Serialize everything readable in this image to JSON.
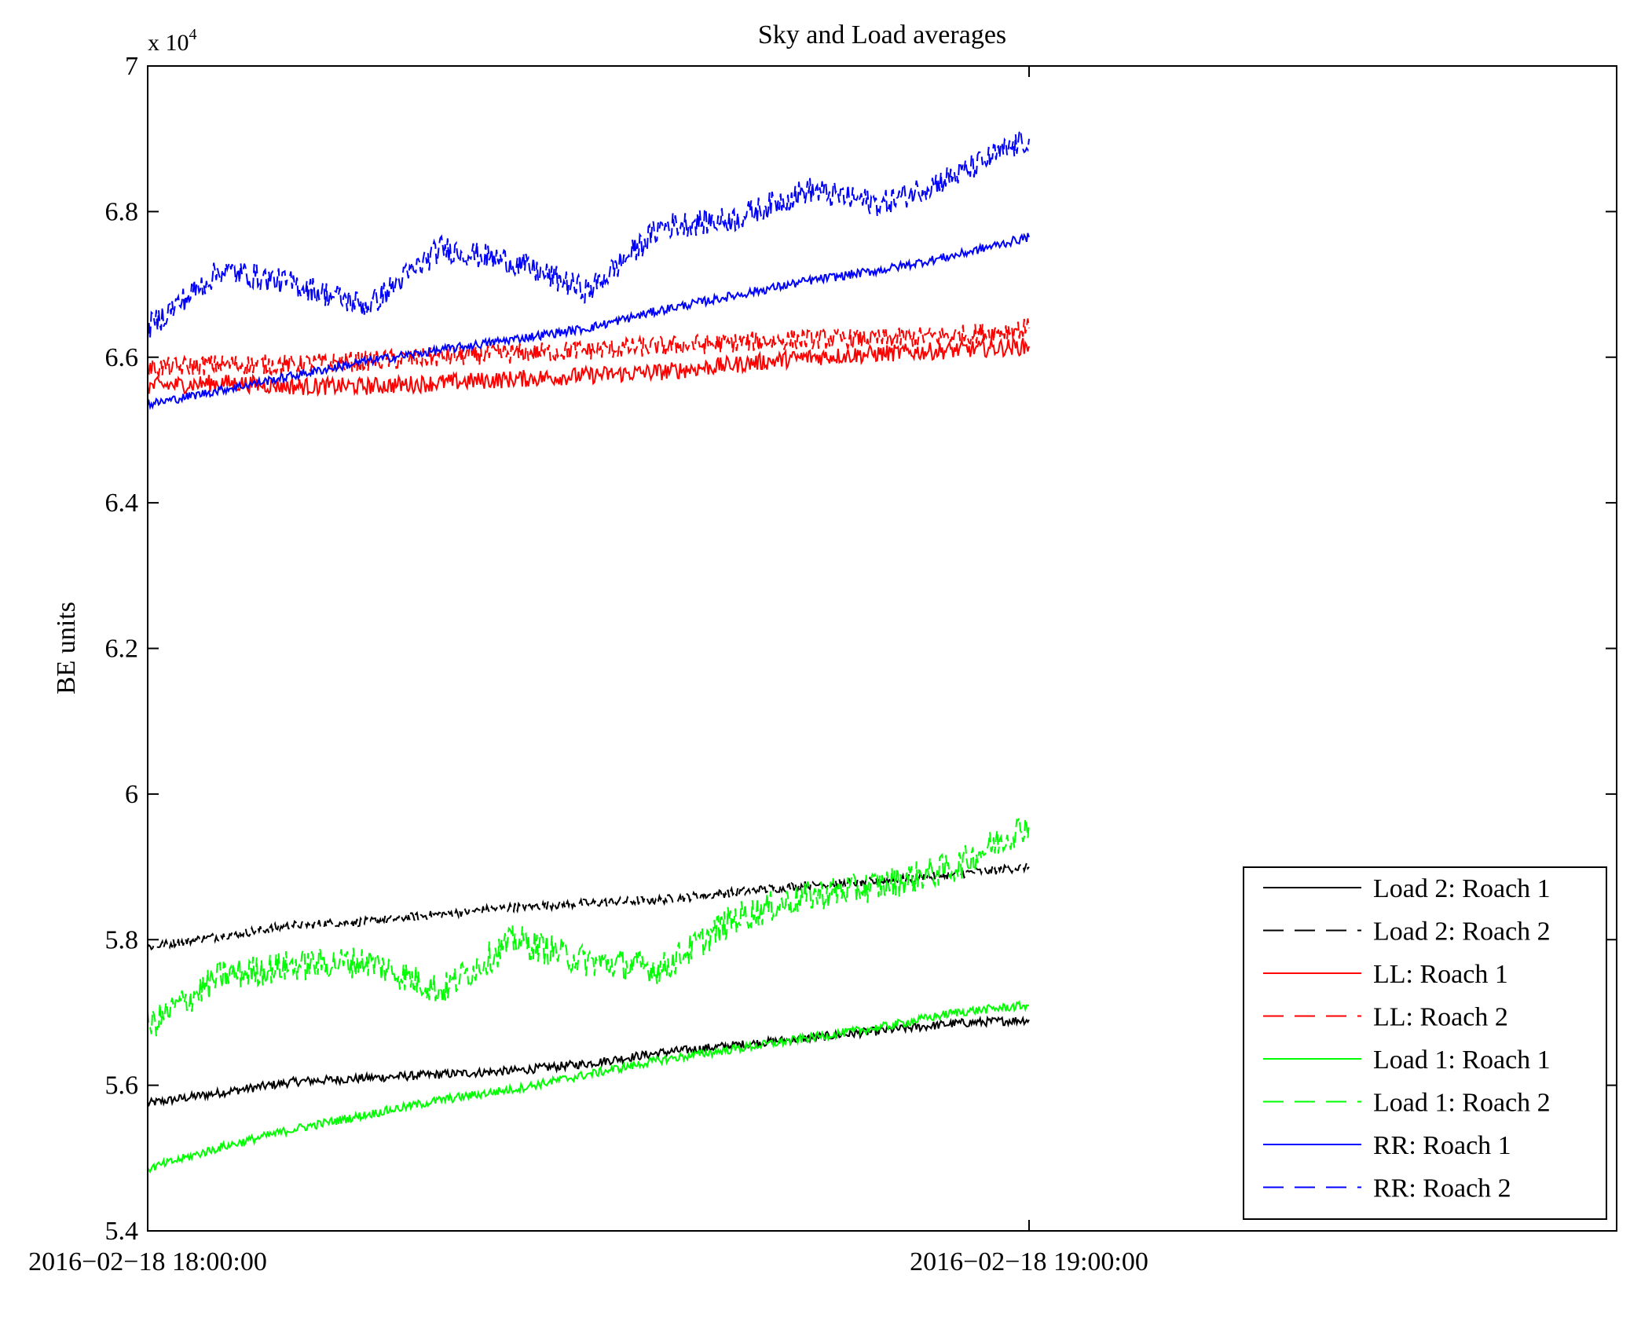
{
  "chart_data": {
    "type": "line",
    "title": "Sky and Load averages",
    "xlabel": "",
    "ylabel": "BE units",
    "y_multiplier": {
      "base": "x 10",
      "exponent": "4"
    },
    "xlim": [
      "2016-02-18 18:00:00",
      "2016-02-18 19:40:00"
    ],
    "ylim": [
      5.4,
      7.0
    ],
    "y_ticks": [
      {
        "value": 5.4,
        "label": "5.4"
      },
      {
        "value": 5.6,
        "label": "5.6"
      },
      {
        "value": 5.8,
        "label": "5.8"
      },
      {
        "value": 6.0,
        "label": "6"
      },
      {
        "value": 6.2,
        "label": "6.2"
      },
      {
        "value": 6.4,
        "label": "6.4"
      },
      {
        "value": 6.6,
        "label": "6.6"
      },
      {
        "value": 6.8,
        "label": "6.8"
      },
      {
        "value": 7.0,
        "label": "7"
      }
    ],
    "x_ticks": [
      {
        "value": "2016-02-18 18:00:00",
        "label": "2016−02−18 18:00:00"
      },
      {
        "value": "2016-02-18 19:00:00",
        "label": "2016−02−18 19:00:00"
      }
    ],
    "grid": false,
    "legend_position": "bottom-right",
    "x": [
      "2016-02-18 18:00:00",
      "2016-02-18 18:05:00",
      "2016-02-18 18:10:00",
      "2016-02-18 18:15:00",
      "2016-02-18 18:20:00",
      "2016-02-18 18:25:00",
      "2016-02-18 18:30:00",
      "2016-02-18 18:35:00",
      "2016-02-18 18:40:00",
      "2016-02-18 18:45:00",
      "2016-02-18 18:50:00",
      "2016-02-18 18:55:00",
      "2016-02-18 19:00:00"
    ],
    "series": [
      {
        "name": "Load 2: Roach 1",
        "color": "#000000",
        "dash": "solid",
        "noise": 0.006,
        "values": [
          5.575,
          5.59,
          5.605,
          5.61,
          5.615,
          5.62,
          5.63,
          5.645,
          5.655,
          5.665,
          5.675,
          5.685,
          5.69
        ]
      },
      {
        "name": "Load 2: Roach 2",
        "color": "#000000",
        "dash": "dashed",
        "noise": 0.006,
        "values": [
          5.79,
          5.805,
          5.82,
          5.825,
          5.835,
          5.845,
          5.85,
          5.855,
          5.865,
          5.875,
          5.88,
          5.89,
          5.9
        ]
      },
      {
        "name": "LL: Roach 1",
        "color": "#ff0000",
        "dash": "solid",
        "noise": 0.012,
        "values": [
          6.56,
          6.565,
          6.56,
          6.56,
          6.565,
          6.57,
          6.575,
          6.58,
          6.59,
          6.6,
          6.605,
          6.61,
          6.615
        ]
      },
      {
        "name": "LL: Roach 2",
        "color": "#ff0000",
        "dash": "dashed",
        "noise": 0.014,
        "values": [
          6.585,
          6.59,
          6.59,
          6.595,
          6.6,
          6.605,
          6.61,
          6.615,
          6.62,
          6.625,
          6.625,
          6.63,
          6.64
        ]
      },
      {
        "name": "Load 1: Roach 1",
        "color": "#00ff00",
        "dash": "solid",
        "noise": 0.006,
        "values": [
          5.485,
          5.515,
          5.54,
          5.56,
          5.58,
          5.595,
          5.615,
          5.635,
          5.65,
          5.665,
          5.68,
          5.7,
          5.71
        ]
      },
      {
        "name": "Load 1: Roach 2",
        "color": "#00ff00",
        "dash": "dashed",
        "noise": 0.022,
        "values": [
          5.68,
          5.75,
          5.765,
          5.77,
          5.73,
          5.8,
          5.77,
          5.76,
          5.83,
          5.86,
          5.875,
          5.9,
          5.96
        ]
      },
      {
        "name": "RR: Roach 1",
        "color": "#0000ff",
        "dash": "solid",
        "noise": 0.006,
        "values": [
          6.535,
          6.555,
          6.575,
          6.595,
          6.61,
          6.625,
          6.64,
          6.665,
          6.685,
          6.705,
          6.72,
          6.74,
          6.765
        ]
      },
      {
        "name": "RR: Roach 2",
        "color": "#0000ff",
        "dash": "dashed",
        "noise": 0.018,
        "values": [
          6.64,
          6.72,
          6.7,
          6.67,
          6.75,
          6.73,
          6.69,
          6.78,
          6.79,
          6.83,
          6.81,
          6.85,
          6.9
        ]
      }
    ]
  }
}
